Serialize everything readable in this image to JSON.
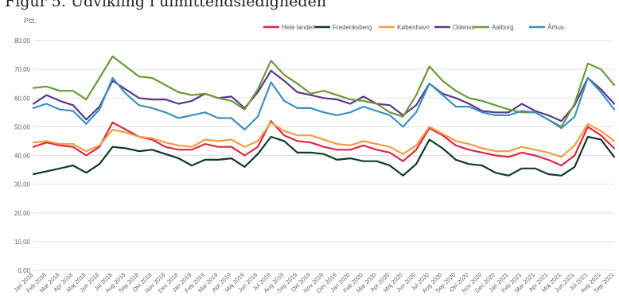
{
  "page": {
    "title": "Figur 5. Udvikling i ulmittendsledigheden"
  },
  "chart_data": {
    "type": "line",
    "ylabel": "Pct.",
    "ylim": [
      0,
      80
    ],
    "yticks": [
      "0,00",
      "10,00",
      "20,00",
      "30,00",
      "40,00",
      "50,00",
      "60,00",
      "70,00",
      "80,00"
    ],
    "grid": "horizontal",
    "legend": "top-right",
    "categories": [
      "Jan 2018",
      "Feb 2018",
      "Mar 2018",
      "Apr 2018",
      "Maj 2018",
      "Jun 2018",
      "Jul 2018",
      "Aug 2018",
      "Sep 2018",
      "Okt 2018",
      "Nov 2018",
      "Dec 2018",
      "Jan 2019",
      "Feb 2019",
      "Mar 2019",
      "Apr 2019",
      "Maj 2019",
      "Jun 2019",
      "Jul 2019",
      "Aug 2019",
      "Sep 2019",
      "Okt 2019",
      "Nov 2019",
      "Dec 2019",
      "Jan 2020",
      "Feb 2020",
      "Mar 2020",
      "Apr 2020",
      "Maj 2020",
      "Jun 2020",
      "Jul 2020",
      "Aug 2020",
      "Sep 2020",
      "Okt 2020",
      "Nov 2020",
      "Dec 2020",
      "Jan 2021",
      "Feb 2021",
      "Mar 2021",
      "Apr 2021",
      "Maj 2021",
      "Jun 2021",
      "Jul 2021",
      "Aug 2021",
      "Sep 2021"
    ],
    "series": [
      {
        "name": "Hele landet",
        "color": "#e0293e",
        "values": [
          43,
          44.5,
          43.5,
          43,
          40,
          43,
          51.5,
          49,
          46.5,
          45.5,
          43,
          42,
          42,
          44,
          43,
          43,
          40,
          43,
          52,
          47,
          45,
          44.5,
          43,
          42,
          42,
          43.5,
          42,
          41,
          38,
          42,
          49.5,
          47,
          43.5,
          42,
          41,
          40,
          39.5,
          41,
          40,
          38.5,
          36.5,
          40,
          50,
          47,
          42.5
        ]
      },
      {
        "name": "Frederiksberg",
        "color": "#0f3b26",
        "values": [
          33.5,
          34.5,
          35.5,
          36.5,
          34,
          37,
          43,
          42.5,
          41.5,
          42,
          40.5,
          39,
          36.5,
          38.5,
          38.5,
          39,
          36,
          40.5,
          46.5,
          45,
          41,
          41,
          40.5,
          38.5,
          39,
          38,
          38,
          36.5,
          33,
          37,
          45.5,
          42.5,
          38.5,
          37,
          36.5,
          34,
          33,
          35.5,
          35.5,
          33.5,
          33,
          36,
          46.5,
          45.5,
          39.5
        ]
      },
      {
        "name": "København",
        "color": "#f39c47",
        "values": [
          44.5,
          45,
          44,
          44,
          41.5,
          43.5,
          49,
          48,
          46.5,
          46,
          44.5,
          43.5,
          43,
          45.5,
          45,
          45.5,
          43,
          45,
          51.5,
          48.5,
          47,
          47,
          45.5,
          44,
          43.5,
          45,
          44,
          43,
          40.5,
          43.5,
          50,
          47.5,
          45,
          44,
          42.5,
          41.5,
          41.5,
          43,
          42,
          41,
          39.5,
          43.5,
          51,
          48.5,
          45
        ]
      },
      {
        "name": "Odense",
        "color": "#5b3a8c",
        "values": [
          58,
          61,
          59,
          57.5,
          52.5,
          57,
          66,
          63,
          60,
          59.5,
          59.5,
          58,
          59,
          61.5,
          60,
          60.5,
          56.5,
          62,
          69.5,
          66,
          62,
          61,
          60,
          59.5,
          58,
          60.5,
          58,
          57.5,
          54,
          57.5,
          65,
          61.5,
          60,
          58,
          55.5,
          55,
          55,
          58,
          55.5,
          54,
          52,
          57.5,
          67,
          63,
          58
        ]
      },
      {
        "name": "Aalborg",
        "color": "#6c9a3a",
        "values": [
          63.5,
          64,
          62.5,
          62.5,
          59.5,
          67,
          74.5,
          71,
          67.5,
          67,
          64.5,
          62,
          61,
          61.5,
          60,
          59,
          56,
          63,
          73,
          68,
          65,
          61.5,
          62.5,
          61,
          59.5,
          59,
          58,
          55,
          53.5,
          61,
          71,
          66,
          62.5,
          60,
          59,
          57.5,
          56,
          55,
          55,
          52.5,
          50,
          58,
          72,
          70,
          64.5
        ]
      },
      {
        "name": "Århus",
        "color": "#3a93c2",
        "values": [
          56.5,
          58,
          56,
          55.5,
          51,
          56,
          67,
          61.5,
          57.5,
          56.5,
          55,
          53,
          54,
          55,
          53,
          53,
          49,
          53.5,
          65.5,
          59,
          56.5,
          56.5,
          55,
          54,
          55,
          57,
          55.5,
          54,
          50,
          55,
          65,
          61,
          57,
          57,
          55,
          54,
          54,
          55.5,
          55,
          52.5,
          49.5,
          53.5,
          67,
          62,
          56
        ]
      }
    ]
  }
}
